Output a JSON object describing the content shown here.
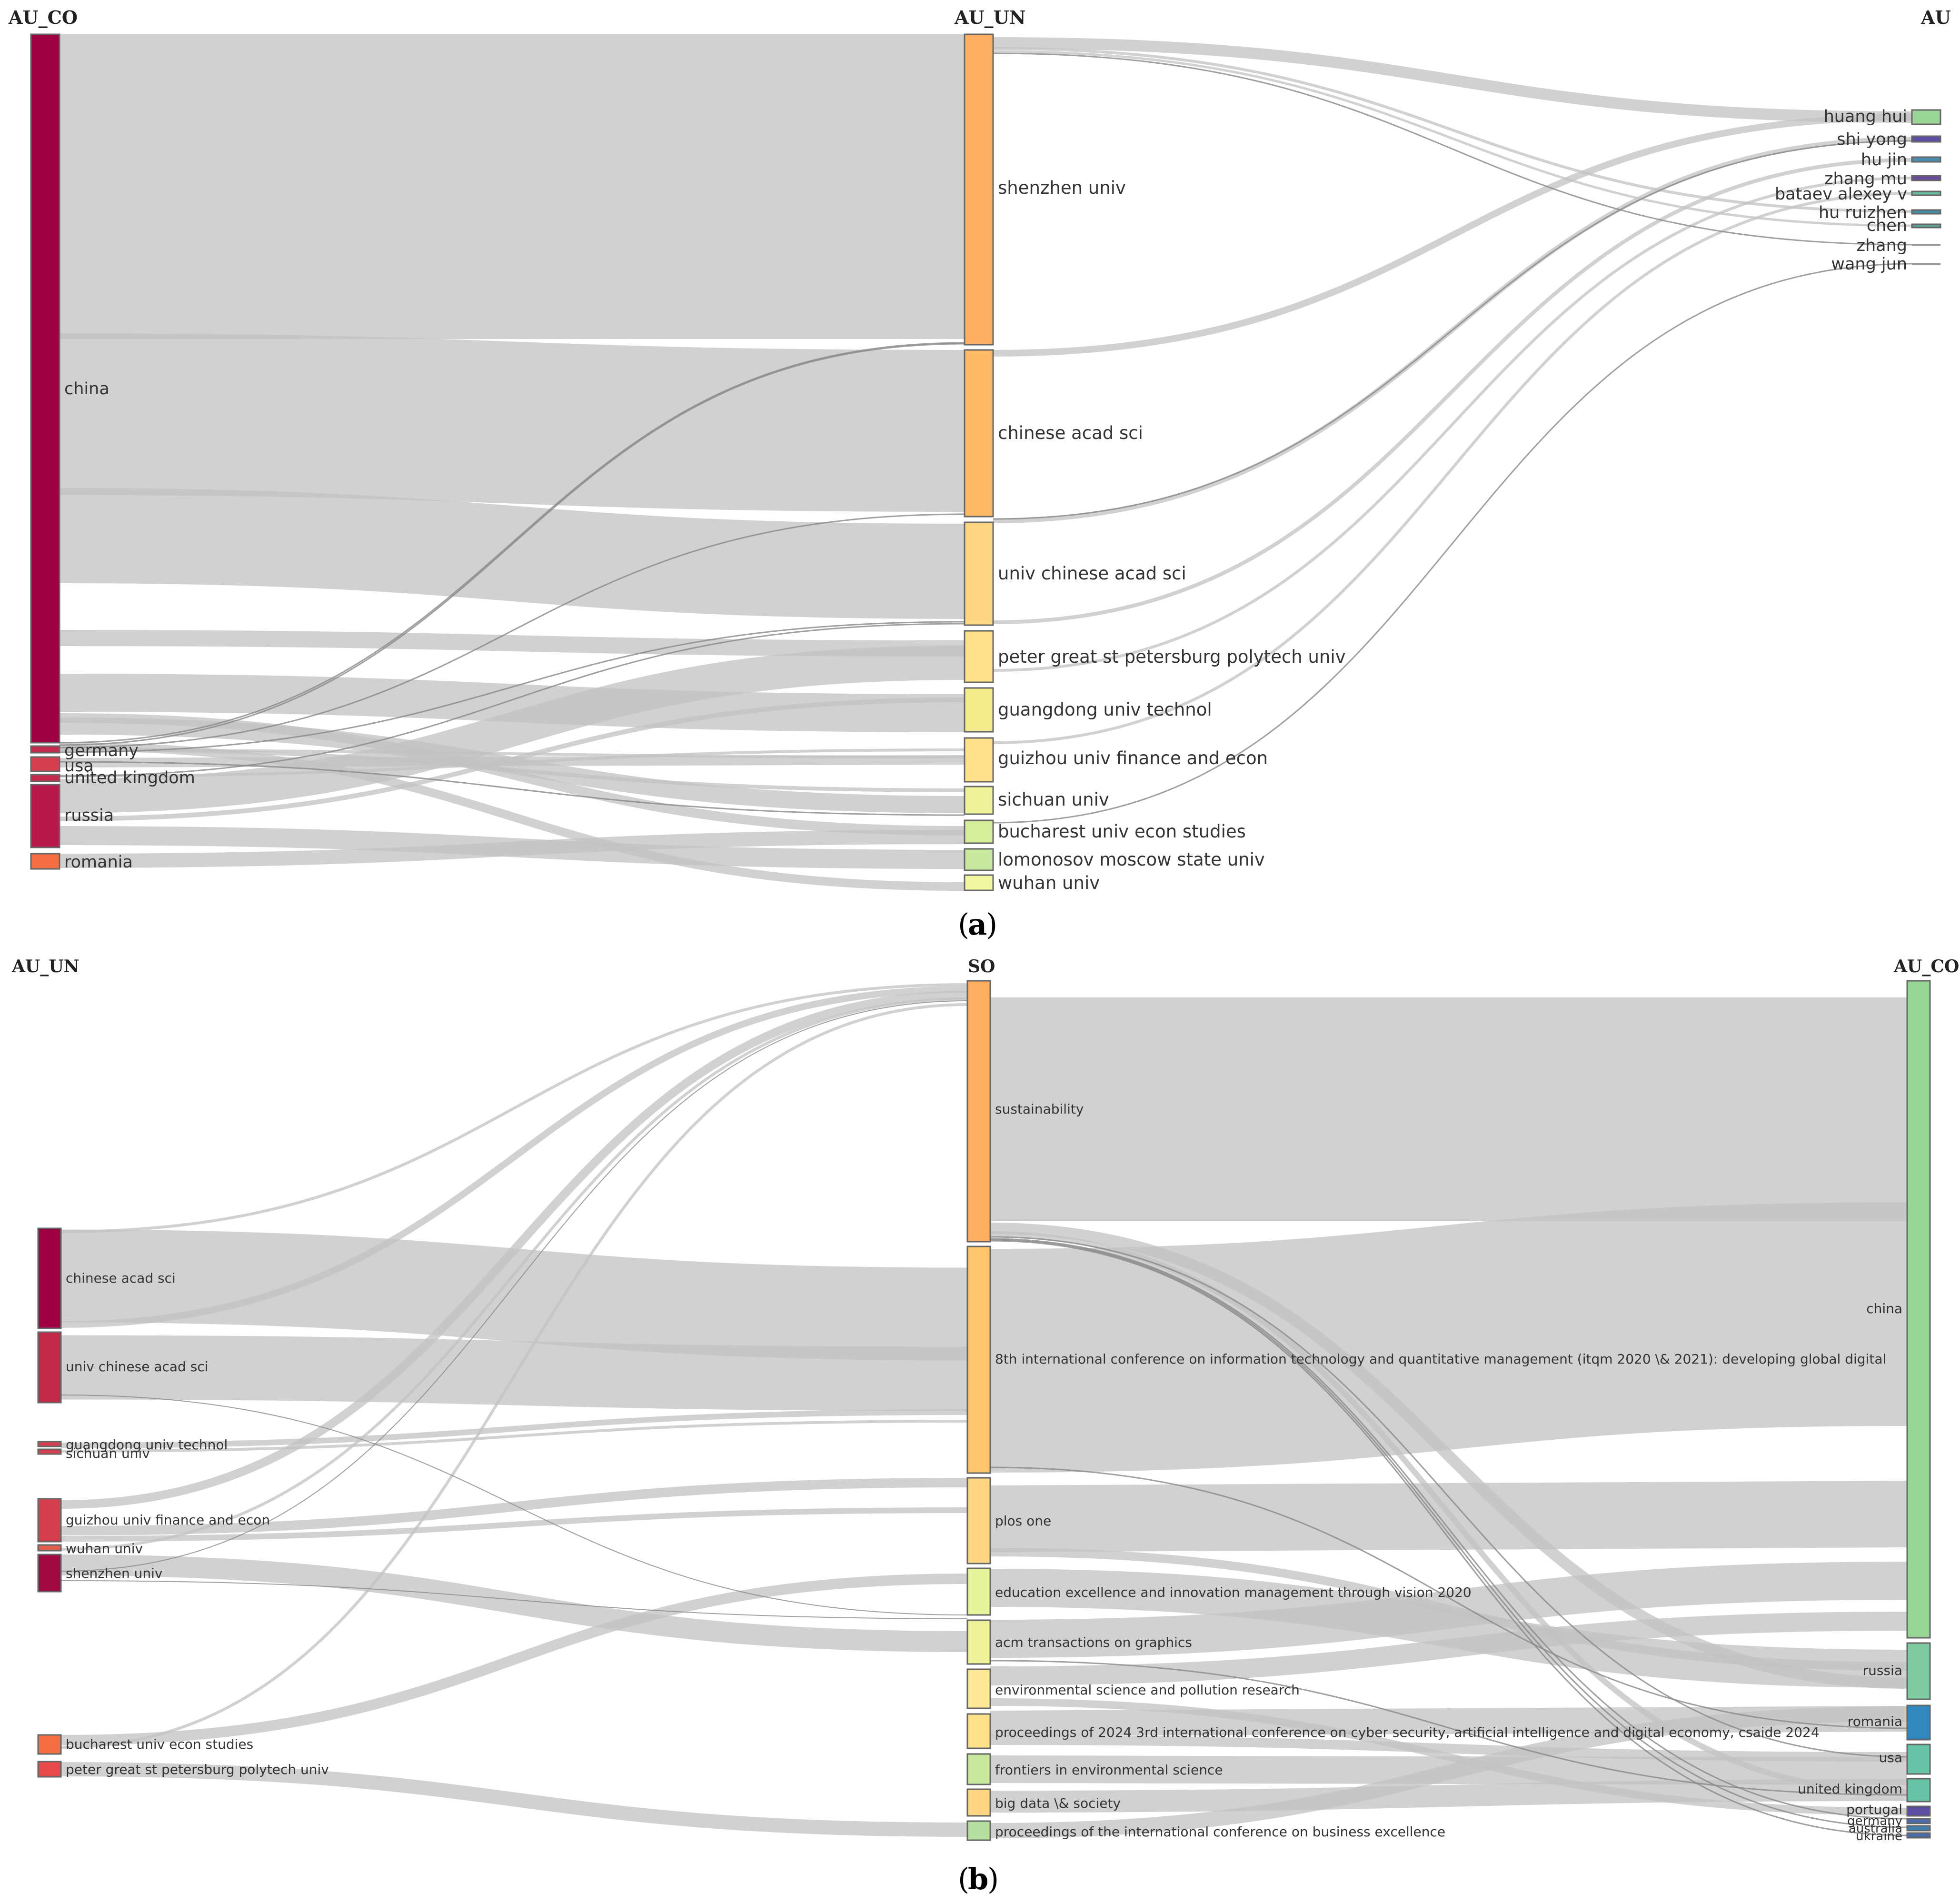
{
  "panel_a": {
    "caption_open": "(",
    "caption_letter": "a",
    "caption_close": ")",
    "headers": {
      "left": "AU_CO",
      "middle": "AU_UN",
      "right": "AU"
    },
    "left_nodes": [
      {
        "label": "china",
        "color": "#9e0142"
      },
      {
        "label": "germany",
        "color": "#c2294a"
      },
      {
        "label": "usa",
        "color": "#d53e4f"
      },
      {
        "label": "united kingdom",
        "color": "#c2294a"
      },
      {
        "label": "russia",
        "color": "#b8184b"
      },
      {
        "label": "romania",
        "color": "#f46d43"
      }
    ],
    "middle_nodes": [
      {
        "label": "shenzhen univ",
        "color": "#fdae61"
      },
      {
        "label": "chinese acad sci",
        "color": "#fdb863"
      },
      {
        "label": "univ chinese acad sci",
        "color": "#fed684"
      },
      {
        "label": "peter great st petersburg polytech univ",
        "color": "#fee08b"
      },
      {
        "label": "guangdong univ technol",
        "color": "#f4eb8c"
      },
      {
        "label": "guizhou univ finance and econ",
        "color": "#fee08b"
      },
      {
        "label": "sichuan univ",
        "color": "#eef29a"
      },
      {
        "label": "bucharest univ econ studies",
        "color": "#d6ee9b"
      },
      {
        "label": "lomonosov moscow state univ",
        "color": "#c7e89e"
      },
      {
        "label": "wuhan univ",
        "color": "#f0f5a0"
      }
    ],
    "right_nodes": [
      {
        "label": "huang hui",
        "color": "#99d594"
      },
      {
        "label": "shi yong",
        "color": "#5e4fa2"
      },
      {
        "label": "hu jin",
        "color": "#4a8fb0"
      },
      {
        "label": "zhang mu",
        "color": "#6a4c9c"
      },
      {
        "label": "bataev alexey v",
        "color": "#66c2a5"
      },
      {
        "label": "hu ruizhen",
        "color": "#3f8fa6"
      },
      {
        "label": "chen",
        "color": "#5aa29a"
      },
      {
        "label": "zhang",
        "color": "#999999"
      },
      {
        "label": "wang jun",
        "color": "#999999"
      }
    ]
  },
  "panel_b": {
    "caption_open": "(",
    "caption_letter": "b",
    "caption_close": ")",
    "headers": {
      "left": "AU_UN",
      "middle": "SO",
      "right": "AU_CO"
    },
    "left_nodes": [
      {
        "label": "chinese acad sci",
        "color": "#9e0142"
      },
      {
        "label": "univ chinese acad sci",
        "color": "#c2294a"
      },
      {
        "label": "guangdong univ technol",
        "color": "#d53e4f"
      },
      {
        "label": "sichuan univ",
        "color": "#d53e4f"
      },
      {
        "label": "guizhou univ finance and econ",
        "color": "#d53e4f"
      },
      {
        "label": "wuhan univ",
        "color": "#e0604d"
      },
      {
        "label": "shenzhen univ",
        "color": "#a0083f"
      },
      {
        "label": "bucharest univ econ studies",
        "color": "#f46d43"
      },
      {
        "label": "peter great st petersburg polytech univ",
        "color": "#e8484a"
      }
    ],
    "middle_nodes": [
      {
        "label": "sustainability",
        "color": "#fdae61"
      },
      {
        "label": "8th international conference on information technology and quantitative management (itqm 2020 \\& 2021): developing global digital",
        "color": "#fdc56c"
      },
      {
        "label": "plos one",
        "color": "#fed684"
      },
      {
        "label": "education excellence and innovation management through vision 2020",
        "color": "#e6f59d"
      },
      {
        "label": "acm transactions on graphics",
        "color": "#eef29a"
      },
      {
        "label": "environmental science and pollution research",
        "color": "#fee99a"
      },
      {
        "label": "proceedings of 2024 3rd international conference on cyber security, artificial intelligence and digital economy, csaide 2024",
        "color": "#fee08b"
      },
      {
        "label": "frontiers in environmental science",
        "color": "#c7e89e"
      },
      {
        "label": "big data \\& society",
        "color": "#fed684"
      },
      {
        "label": "proceedings of the international conference on business excellence",
        "color": "#b4dfa0"
      }
    ],
    "right_nodes": [
      {
        "label": "china",
        "color": "#99d594"
      },
      {
        "label": "russia",
        "color": "#7fcaa0"
      },
      {
        "label": "romania",
        "color": "#3288bd"
      },
      {
        "label": "usa",
        "color": "#66c2a5"
      },
      {
        "label": "united kingdom",
        "color": "#66c2a5"
      },
      {
        "label": "portugal",
        "color": "#5e4fa2"
      },
      {
        "label": "germany",
        "color": "#4d6aa8"
      },
      {
        "label": "australia",
        "color": "#3f7fb0"
      },
      {
        "label": "ukraine",
        "color": "#4a6ca6"
      }
    ]
  }
}
